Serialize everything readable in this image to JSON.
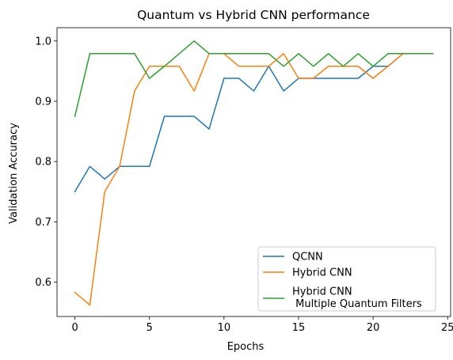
{
  "chart_data": {
    "type": "line",
    "title": "Quantum vs Hybrid CNN performance",
    "xlabel": "Epochs",
    "ylabel": "Validation Accuracy",
    "xlim": [
      -1.2,
      25.2
    ],
    "ylim": [
      0.543,
      1.022
    ],
    "xticks": [
      "0",
      "5",
      "10",
      "15",
      "20",
      "25"
    ],
    "yticks": [
      "0.6",
      "0.7",
      "0.8",
      "0.9",
      "1.0"
    ],
    "grid": false,
    "legend_position": "lower-right",
    "series": [
      {
        "name": "QCNN",
        "color": "#1f77b4",
        "x": [
          0,
          1,
          2,
          3,
          4,
          5,
          6,
          7,
          8,
          9,
          10,
          11,
          12,
          13,
          14,
          15,
          16,
          17,
          18,
          19,
          20,
          21,
          22,
          23,
          24
        ],
        "values": [
          0.75,
          0.792,
          0.771,
          0.792,
          0.792,
          0.792,
          0.875,
          0.875,
          0.875,
          0.854,
          0.938,
          0.938,
          0.917,
          0.958,
          0.917,
          0.938,
          0.938,
          0.938,
          0.938,
          0.938,
          0.958,
          0.958,
          0.979,
          0.979,
          0.979
        ]
      },
      {
        "name": "Hybrid CNN",
        "color": "#ff7f0e",
        "x": [
          0,
          1,
          2,
          3,
          4,
          5,
          6,
          7,
          8,
          9,
          10,
          11,
          12,
          13,
          14,
          15,
          16,
          17,
          18,
          19,
          20,
          21,
          22
        ],
        "values": [
          0.583,
          0.562,
          0.75,
          0.792,
          0.917,
          0.958,
          0.958,
          0.958,
          0.917,
          0.979,
          0.979,
          0.958,
          0.958,
          0.958,
          0.979,
          0.938,
          0.938,
          0.958,
          0.958,
          0.958,
          0.938,
          0.958,
          0.979
        ]
      },
      {
        "name": "Hybrid CNN\n Multiple Quantum Filters",
        "color": "#2ca02c",
        "x": [
          0,
          1,
          2,
          3,
          4,
          5,
          6,
          7,
          8,
          9,
          10,
          11,
          12,
          13,
          14,
          15,
          16,
          17,
          18,
          19,
          20,
          21,
          22,
          23,
          24
        ],
        "values": [
          0.875,
          0.979,
          0.979,
          0.979,
          0.979,
          0.938,
          0.958,
          0.979,
          1.0,
          0.979,
          0.979,
          0.979,
          0.979,
          0.979,
          0.958,
          0.979,
          0.958,
          0.979,
          0.958,
          0.979,
          0.958,
          0.979,
          0.979,
          0.979,
          0.979
        ]
      }
    ]
  }
}
